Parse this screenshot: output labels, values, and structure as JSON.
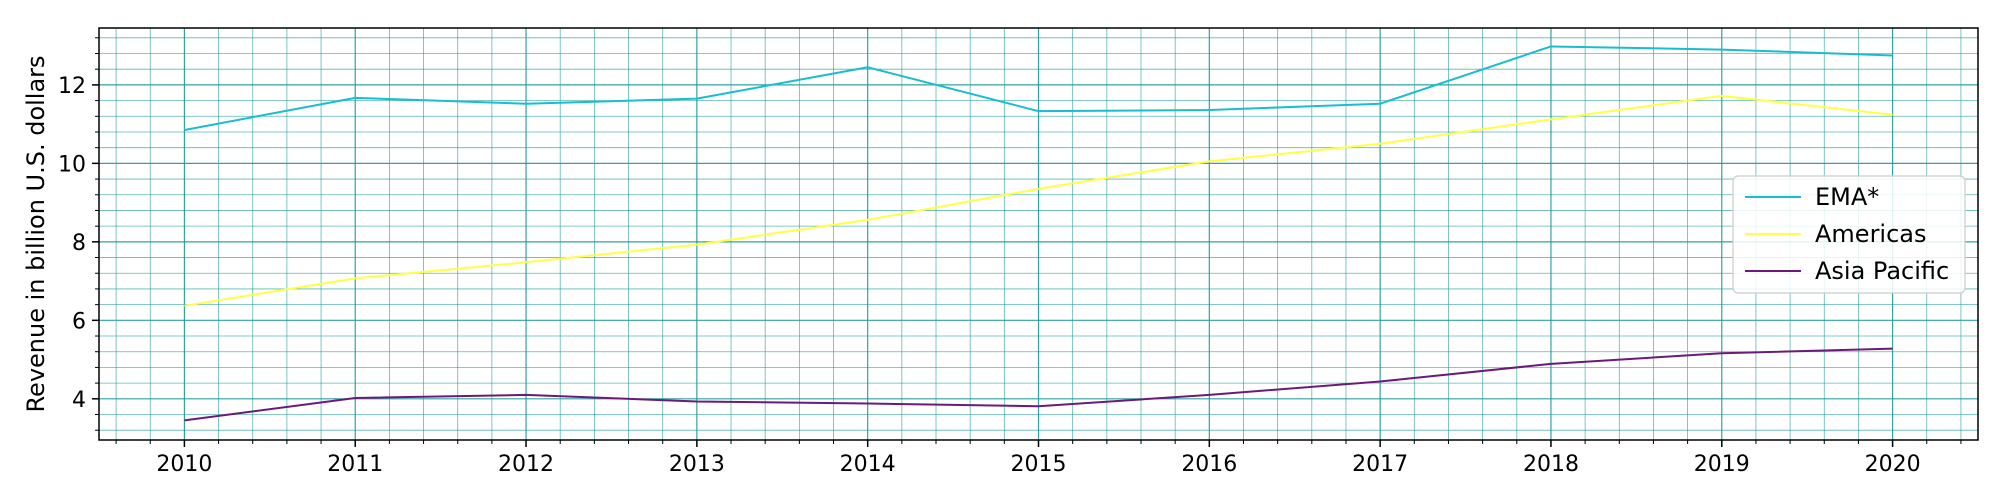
{
  "chart_data": {
    "type": "line",
    "title": "",
    "xlabel": "",
    "ylabel": "Revenue in billion U.S. dollars",
    "x": [
      2010,
      2011,
      2012,
      2013,
      2014,
      2015,
      2016,
      2017,
      2018,
      2019,
      2020
    ],
    "xlim": [
      2009.5,
      2020.5
    ],
    "ylim": [
      2.95,
      13.45
    ],
    "yticks": [
      4,
      6,
      8,
      10,
      12
    ],
    "grid": "major and minor",
    "legend": "right",
    "series": [
      {
        "name": "EMA*",
        "color": "#17becf",
        "values": [
          10.85,
          11.67,
          11.52,
          11.65,
          12.45,
          11.33,
          11.36,
          11.52,
          12.98,
          12.9,
          12.75
        ]
      },
      {
        "name": "Americas",
        "color": "#ffff44",
        "values": [
          6.37,
          7.07,
          7.48,
          7.93,
          8.56,
          9.35,
          10.05,
          10.5,
          11.12,
          11.72,
          11.24
        ]
      },
      {
        "name": "Asia Pacific",
        "color": "#6a1b7a",
        "values": [
          3.45,
          4.02,
          4.1,
          3.93,
          3.88,
          3.81,
          4.1,
          4.44,
          4.89,
          5.16,
          5.28
        ]
      }
    ]
  }
}
